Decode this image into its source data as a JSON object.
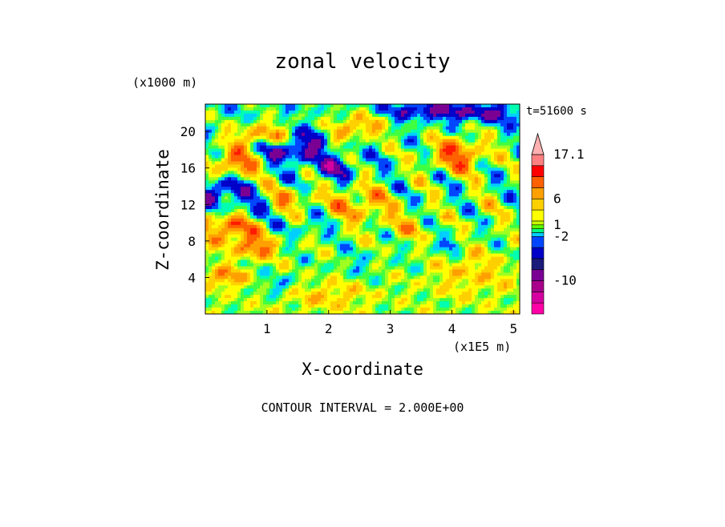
{
  "chart_data": {
    "type": "heatmap",
    "title": "zonal velocity",
    "xlabel": "X-coordinate",
    "ylabel": "Z-coordinate",
    "x_unit": "(x1E5 m)",
    "y_unit": "(x1000 m)",
    "time_label": "t=51600 s",
    "contour_note": "CONTOUR INTERVAL = 2.000E+00",
    "xlim": [
      0,
      5.1
    ],
    "ylim": [
      0,
      23
    ],
    "x_ticks": [
      "1",
      "2",
      "3",
      "4",
      "5"
    ],
    "x_tick_values": [
      1,
      2,
      3,
      4,
      5
    ],
    "y_ticks": [
      "4",
      "8",
      "12",
      "16",
      "20"
    ],
    "y_tick_values": [
      4,
      8,
      12,
      16,
      20
    ],
    "colorbar": {
      "labels": [
        "17.1",
        "6",
        "1",
        "-2",
        "-10"
      ],
      "label_values": [
        17.1,
        6,
        1,
        -2,
        -10
      ],
      "levels": [
        -16,
        -14,
        -12,
        -10,
        -8,
        -6,
        -4,
        -2,
        -1,
        0,
        1,
        2,
        4,
        6,
        8,
        10,
        14,
        17.1
      ],
      "colors": [
        "#ff00a6",
        "#d400a0",
        "#a8008c",
        "#7a0094",
        "#1a1a7a",
        "#0000c8",
        "#0046ff",
        "#00d0ff",
        "#00ff80",
        "#5aff00",
        "#c8ff00",
        "#ffff00",
        "#ffd000",
        "#ffa000",
        "#ff6000",
        "#ff0000",
        "#ff8080",
        "#ffb0b0"
      ]
    },
    "color_stops": [
      {
        "v": -12,
        "color": "#d400a0"
      },
      {
        "v": -8,
        "color": "#7a0094"
      },
      {
        "v": -5,
        "color": "#0000c8"
      },
      {
        "v": -3,
        "color": "#0046ff"
      },
      {
        "v": -1.5,
        "color": "#00d0ff"
      },
      {
        "v": -0.5,
        "color": "#00ffb0"
      },
      {
        "v": 0.5,
        "color": "#40ff40"
      },
      {
        "v": 1.5,
        "color": "#a0ff20"
      },
      {
        "v": 2.5,
        "color": "#ffff00"
      },
      {
        "v": 4,
        "color": "#ffd000"
      },
      {
        "v": 5.5,
        "color": "#ffa000"
      },
      {
        "v": 7,
        "color": "#ff6000"
      },
      {
        "v": 9,
        "color": "#ff1a00"
      },
      {
        "v": 13,
        "color": "#ff8080"
      }
    ],
    "field_features": [
      {
        "x": 0.25,
        "z": 13.5,
        "sx": 0.45,
        "sz": 1.8,
        "v": -6
      },
      {
        "x": 0.85,
        "z": 11.5,
        "sx": 0.35,
        "sz": 1.2,
        "v": -4
      },
      {
        "x": 1.0,
        "z": 17.8,
        "sx": 0.35,
        "sz": 1.2,
        "v": -5
      },
      {
        "x": 1.55,
        "z": 18.0,
        "sx": 0.35,
        "sz": 1.5,
        "v": -6
      },
      {
        "x": 2.1,
        "z": 16.0,
        "sx": 0.35,
        "sz": 1.3,
        "v": -5
      },
      {
        "x": 1.8,
        "z": 20.0,
        "sx": 0.25,
        "sz": 1.0,
        "v": -4
      },
      {
        "x": 3.6,
        "z": 22.3,
        "sx": 0.6,
        "sz": 0.9,
        "v": -6
      },
      {
        "x": 4.6,
        "z": 22.0,
        "sx": 0.6,
        "sz": 1.0,
        "v": -5
      },
      {
        "x": 0.5,
        "z": 16.5,
        "sx": 0.4,
        "sz": 1.6,
        "v": 8
      },
      {
        "x": 0.9,
        "z": 19.5,
        "sx": 0.5,
        "sz": 1.5,
        "v": 6
      },
      {
        "x": 2.4,
        "z": 20.5,
        "sx": 0.5,
        "sz": 1.4,
        "v": 6
      },
      {
        "x": 4.1,
        "z": 17.5,
        "sx": 0.5,
        "sz": 2.0,
        "v": 7
      },
      {
        "x": 0.4,
        "z": 9.5,
        "sx": 0.5,
        "sz": 1.6,
        "v": 7
      },
      {
        "x": 0.8,
        "z": 7.2,
        "sx": 0.35,
        "sz": 1.2,
        "v": 6
      },
      {
        "x": 1.3,
        "z": 12.5,
        "sx": 0.4,
        "sz": 1.2,
        "v": 5
      },
      {
        "x": 2.5,
        "z": 12.0,
        "sx": 0.5,
        "sz": 2.0,
        "v": 5
      },
      {
        "x": 3.3,
        "z": 9.5,
        "sx": 0.35,
        "sz": 1.6,
        "v": 3
      },
      {
        "x": 1.6,
        "z": 9.5,
        "sx": 0.5,
        "sz": 1.0,
        "v": -2
      },
      {
        "x": 2.5,
        "z": 5.5,
        "sx": 0.4,
        "sz": 1.5,
        "v": -1.5
      },
      {
        "x": 3.6,
        "z": 6.5,
        "sx": 0.4,
        "sz": 2.0,
        "v": -1
      },
      {
        "x": 4.6,
        "z": 11.5,
        "sx": 0.4,
        "sz": 1.6,
        "v": 1
      },
      {
        "x": 4.3,
        "z": 4.5,
        "sx": 0.7,
        "sz": 2.5,
        "v": 3
      },
      {
        "x": 2.0,
        "z": 2.0,
        "sx": 0.6,
        "sz": 1.5,
        "v": 3
      },
      {
        "x": 0.3,
        "z": 4.0,
        "sx": 0.35,
        "sz": 1.2,
        "v": 5
      },
      {
        "x": 1.2,
        "z": 3.2,
        "sx": 0.3,
        "sz": 1.0,
        "v": -3
      },
      {
        "x": 4.0,
        "z": 7.5,
        "sx": 0.15,
        "sz": 0.6,
        "v": -5
      }
    ]
  }
}
